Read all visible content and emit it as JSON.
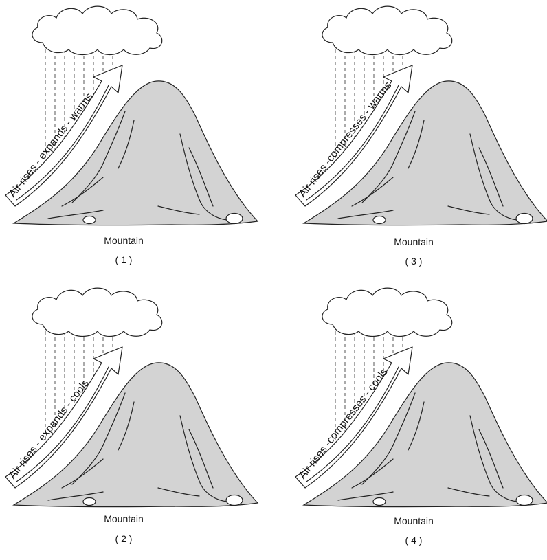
{
  "panels": [
    {
      "number": "( 1 )",
      "arrow_text": "Air rises - expands - warms",
      "caption": "Mountain"
    },
    {
      "number": "( 3 )",
      "arrow_text": "Air rises -compresses - warms",
      "caption": "Mountain"
    },
    {
      "number": "( 2 )",
      "arrow_text": "Air rises - expands - cools",
      "caption": "Mountain"
    },
    {
      "number": "( 4 )",
      "arrow_text": "Air rises -compresses - cools",
      "caption": "Mountain"
    }
  ]
}
